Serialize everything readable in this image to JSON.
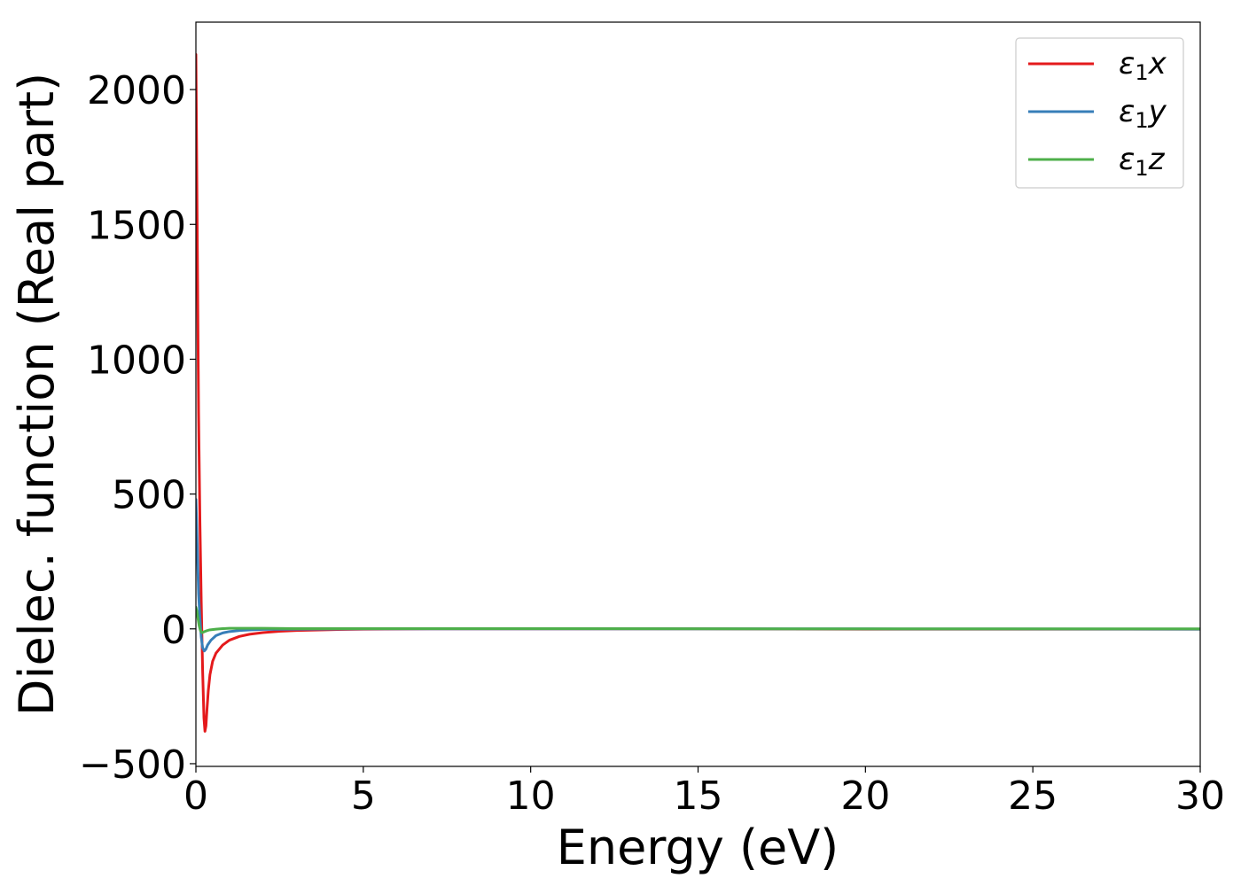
{
  "chart_data": {
    "type": "line",
    "title": "",
    "xlabel": "Energy (eV)",
    "ylabel": "Dielec. function (Real part)",
    "xlim": [
      0,
      30
    ],
    "ylim": [
      -510,
      2250
    ],
    "xticks": [
      0,
      5,
      10,
      15,
      20,
      25,
      30
    ],
    "xtick_labels": [
      "0",
      "5",
      "10",
      "15",
      "20",
      "25",
      "30"
    ],
    "yticks": [
      -500,
      0,
      500,
      1000,
      1500,
      2000
    ],
    "ytick_labels": [
      "−500",
      "0",
      "500",
      "1000",
      "1500",
      "2000"
    ],
    "grid": false,
    "legend_position": "top-right",
    "series": [
      {
        "name": "ε₁x",
        "legend_main": "ε",
        "legend_sub": "1",
        "legend_suffix": "x",
        "color": "#e41a1c",
        "x": [
          0,
          0.02,
          0.05,
          0.08,
          0.12,
          0.16,
          0.2,
          0.24,
          0.27,
          0.3,
          0.33,
          0.37,
          0.42,
          0.5,
          0.6,
          0.8,
          1.0,
          1.3,
          1.6,
          2.0,
          2.5,
          3.0,
          4.0,
          5.0,
          7.0,
          10,
          15,
          20,
          25,
          30
        ],
        "y": [
          2130,
          1800,
          1300,
          800,
          400,
          100,
          -150,
          -330,
          -380,
          -360,
          -300,
          -230,
          -170,
          -120,
          -90,
          -60,
          -42,
          -28,
          -20,
          -14,
          -9,
          -6,
          -3,
          -1,
          0,
          0,
          0,
          -1,
          -1,
          -1
        ]
      },
      {
        "name": "ε₁y",
        "legend_main": "ε",
        "legend_sub": "1",
        "legend_suffix": "y",
        "color": "#377eb8",
        "x": [
          0,
          0.02,
          0.05,
          0.08,
          0.12,
          0.16,
          0.2,
          0.25,
          0.3,
          0.35,
          0.45,
          0.6,
          0.8,
          1.0,
          1.3,
          1.6,
          2.0,
          3.0,
          5.0,
          10,
          20,
          30
        ],
        "y": [
          480,
          400,
          260,
          130,
          40,
          -30,
          -70,
          -82,
          -75,
          -60,
          -42,
          -25,
          -15,
          -10,
          -6,
          -4,
          -2,
          -1,
          0,
          0,
          0,
          -1
        ]
      },
      {
        "name": "ε₁z",
        "legend_main": "ε",
        "legend_sub": "1",
        "legend_suffix": "z",
        "color": "#4daf4a",
        "x": [
          0,
          0.03,
          0.06,
          0.1,
          0.14,
          0.18,
          0.22,
          0.3,
          0.4,
          0.6,
          0.8,
          1.0,
          1.5,
          2.0,
          3.0,
          5.0,
          10,
          20,
          30
        ],
        "y": [
          80,
          65,
          40,
          10,
          -8,
          -14,
          -12,
          -8,
          -4,
          -1,
          1,
          2,
          2,
          2,
          1,
          1,
          1,
          0,
          0
        ]
      }
    ]
  }
}
